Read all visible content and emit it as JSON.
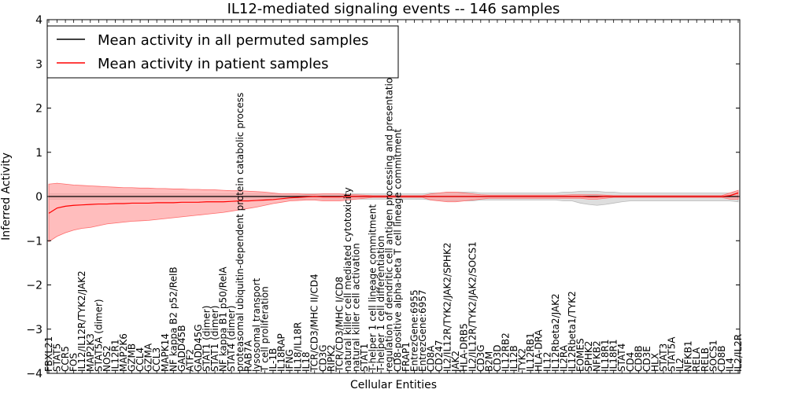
{
  "chart_data": {
    "type": "line",
    "title": "IL12-mediated signaling events -- 146 samples",
    "xlabel": "Cellular Entities",
    "ylabel": "Inferred Activity",
    "ylim": [
      -4,
      4
    ],
    "yticks": [
      -4,
      -3,
      -2,
      -1,
      0,
      1,
      2,
      3,
      4
    ],
    "legend_position": "top-left",
    "colors": {
      "permuted": "#000000",
      "patient": "#ff0000",
      "permuted_band": "#c8c8c8",
      "patient_band": "#ff9a9a"
    },
    "categories": [
      "FBXL21",
      "STAT5",
      "CCR5",
      "FOS",
      "IL12/IL12R/TYK2/JAK2",
      "MAP2K3",
      "STAT5A (dimer)",
      "NOS2",
      "IL12R1",
      "MAP2K6",
      "GZMB",
      "CCL4",
      "GZMA",
      "CCL3",
      "MAPK14",
      "NF kappa B2 p52/RelB",
      "GADD45B",
      "ATF2",
      "GADD45G",
      "STAT1 (dimer)",
      "STAT1 (dimer)",
      "NF kappa B1 p50/RelA",
      "STAT4 (dimer)",
      "proteasomal ubiquitin-dependent protein catabolic process",
      "RAB7A",
      "lysosomal transport",
      "T cell proliferation",
      "IL-1B",
      "IL18RAP",
      "IFNG",
      "IL18/IL18R",
      "IL18",
      "TCR/CD3/MHC II/CD4",
      "CD3G",
      "RIPK2",
      "TCR/CD3/MHC I/CD8",
      "natural killer cell mediated cytotoxicity",
      "natural killer cell activation",
      "STAT1",
      "T-helper 1 cell lineage commitment",
      "T-helper 1 cell differentiation",
      "regulation of dendritic cell antigen processing and presentation",
      "CD8-positive alpha-beta T cell lineage commitment",
      "FRAP1",
      "EntrezGene:6955",
      "EntrezGene:6957",
      "CD8A",
      "CD247",
      "IL2/IL12R/TYK2/JAK2/SPHK2",
      "JAK2",
      "HLA-DRB5",
      "IL2/IL12R/TYK2/JAK2/SOCS1",
      "CD3G",
      "B2M",
      "CD3D",
      "IL12RB2",
      "IL12B",
      "TYK2",
      "IL12RB1",
      "HLA-DRA",
      "IL12",
      "IL12Rbeta2/JAK2",
      "IL2RA",
      "IL12Rbeta1/TYK2",
      "EOMES",
      "SPHK2",
      "NFKB2",
      "IL18R1",
      "IL18R1",
      "STAT4",
      "CD4",
      "CD8B",
      "CD3E",
      "HLX",
      "STAT3",
      "STAT5A",
      "IL2",
      "NFKB1",
      "RELA",
      "RELB",
      "SOCS1",
      "CD8B",
      "IL4",
      "IL2/IL2R"
    ],
    "series": [
      {
        "name": "Mean activity in all permuted samples",
        "values": [
          0.0,
          0.0,
          0.0,
          0.0,
          0.0,
          0.0,
          0.0,
          0.0,
          0.0,
          0.0,
          0.0,
          0.0,
          0.0,
          0.0,
          0.0,
          0.0,
          0.0,
          0.0,
          0.0,
          0.0,
          0.0,
          0.0,
          0.0,
          0.0,
          0.0,
          0.0,
          0.0,
          0.0,
          0.0,
          0.0,
          0.0,
          0.0,
          0.0,
          0.0,
          0.0,
          0.0,
          0.0,
          0.0,
          0.0,
          0.0,
          0.0,
          0.0,
          0.0,
          0.0,
          0.0,
          0.0,
          0.0,
          0.0,
          0.0,
          0.0,
          0.0,
          0.0,
          0.0,
          0.0,
          0.0,
          0.0,
          0.0,
          0.0,
          0.0,
          0.0,
          0.0,
          0.0,
          0.0,
          0.0,
          0.0,
          0.0,
          0.0,
          0.0,
          0.0,
          0.0,
          0.0,
          0.0,
          0.0,
          0.0,
          0.0,
          0.0,
          0.0,
          0.0,
          0.0,
          0.0,
          0.0,
          0.0,
          0.0,
          0.0
        ],
        "lower": [
          -0.06,
          -0.06,
          -0.06,
          -0.06,
          -0.06,
          -0.06,
          -0.06,
          -0.06,
          -0.06,
          -0.06,
          -0.06,
          -0.06,
          -0.06,
          -0.06,
          -0.06,
          -0.06,
          -0.06,
          -0.06,
          -0.06,
          -0.06,
          -0.06,
          -0.06,
          -0.06,
          -0.06,
          -0.06,
          -0.06,
          -0.06,
          -0.06,
          -0.06,
          -0.06,
          -0.06,
          -0.06,
          -0.06,
          -0.06,
          -0.06,
          -0.06,
          -0.06,
          -0.06,
          -0.06,
          -0.06,
          -0.06,
          -0.06,
          -0.06,
          -0.06,
          -0.06,
          -0.06,
          -0.08,
          -0.08,
          -0.1,
          -0.1,
          -0.1,
          -0.1,
          -0.08,
          -0.08,
          -0.08,
          -0.08,
          -0.08,
          -0.08,
          -0.08,
          -0.08,
          -0.08,
          -0.08,
          -0.1,
          -0.1,
          -0.15,
          -0.18,
          -0.2,
          -0.18,
          -0.15,
          -0.12,
          -0.1,
          -0.1,
          -0.1,
          -0.1,
          -0.1,
          -0.1,
          -0.1,
          -0.1,
          -0.1,
          -0.1,
          -0.1,
          -0.1,
          -0.1,
          -0.12
        ],
        "upper": [
          0.06,
          0.06,
          0.06,
          0.06,
          0.06,
          0.06,
          0.06,
          0.06,
          0.06,
          0.06,
          0.06,
          0.06,
          0.06,
          0.06,
          0.06,
          0.06,
          0.06,
          0.06,
          0.06,
          0.06,
          0.06,
          0.06,
          0.06,
          0.06,
          0.06,
          0.06,
          0.06,
          0.06,
          0.06,
          0.06,
          0.06,
          0.06,
          0.06,
          0.06,
          0.06,
          0.06,
          0.06,
          0.06,
          0.06,
          0.06,
          0.06,
          0.06,
          0.06,
          0.06,
          0.06,
          0.06,
          0.08,
          0.08,
          0.1,
          0.1,
          0.1,
          0.1,
          0.08,
          0.08,
          0.08,
          0.08,
          0.08,
          0.08,
          0.08,
          0.08,
          0.08,
          0.08,
          0.1,
          0.1,
          0.12,
          0.12,
          0.12,
          0.1,
          0.1,
          0.08,
          0.08,
          0.08,
          0.08,
          0.08,
          0.08,
          0.08,
          0.08,
          0.08,
          0.08,
          0.08,
          0.08,
          0.08,
          0.08,
          0.1
        ]
      },
      {
        "name": "Mean activity in patient samples",
        "values": [
          -0.38,
          -0.26,
          -0.22,
          -0.2,
          -0.19,
          -0.18,
          -0.17,
          -0.17,
          -0.16,
          -0.16,
          -0.15,
          -0.15,
          -0.15,
          -0.14,
          -0.14,
          -0.14,
          -0.13,
          -0.13,
          -0.13,
          -0.12,
          -0.12,
          -0.12,
          -0.11,
          -0.1,
          -0.1,
          -0.09,
          -0.08,
          -0.07,
          -0.05,
          -0.03,
          -0.02,
          -0.01,
          0.0,
          -0.01,
          -0.01,
          -0.01,
          0.0,
          0.0,
          0.0,
          0.0,
          0.0,
          0.0,
          0.0,
          0.0,
          0.0,
          0.0,
          0.0,
          0.0,
          0.0,
          0.0,
          0.0,
          0.0,
          0.0,
          0.0,
          0.0,
          0.0,
          0.0,
          0.0,
          0.0,
          0.0,
          0.0,
          0.0,
          0.0,
          0.0,
          0.0,
          -0.01,
          -0.01,
          0.0,
          0.0,
          0.0,
          0.0,
          0.0,
          0.0,
          0.0,
          0.0,
          0.0,
          0.0,
          0.0,
          0.0,
          0.0,
          0.0,
          0.0,
          0.02,
          0.08
        ],
        "lower": [
          -1.02,
          -0.9,
          -0.82,
          -0.76,
          -0.72,
          -0.7,
          -0.66,
          -0.62,
          -0.6,
          -0.58,
          -0.56,
          -0.55,
          -0.54,
          -0.52,
          -0.5,
          -0.48,
          -0.46,
          -0.44,
          -0.42,
          -0.4,
          -0.38,
          -0.36,
          -0.33,
          -0.3,
          -0.27,
          -0.24,
          -0.2,
          -0.16,
          -0.13,
          -0.1,
          -0.09,
          -0.08,
          -0.08,
          -0.1,
          -0.1,
          -0.1,
          -0.08,
          -0.06,
          -0.04,
          -0.02,
          -0.02,
          -0.02,
          -0.02,
          -0.02,
          -0.02,
          -0.02,
          -0.08,
          -0.1,
          -0.12,
          -0.12,
          -0.1,
          -0.08,
          -0.06,
          -0.04,
          -0.04,
          -0.04,
          -0.04,
          -0.04,
          -0.04,
          -0.04,
          -0.04,
          -0.04,
          -0.04,
          -0.04,
          -0.04,
          -0.06,
          -0.06,
          -0.04,
          -0.02,
          -0.02,
          -0.02,
          -0.02,
          -0.02,
          -0.02,
          -0.02,
          -0.02,
          -0.02,
          -0.02,
          -0.02,
          -0.02,
          -0.02,
          -0.02,
          -0.06,
          -0.06
        ],
        "upper": [
          0.28,
          0.3,
          0.28,
          0.26,
          0.25,
          0.24,
          0.23,
          0.22,
          0.21,
          0.2,
          0.2,
          0.19,
          0.19,
          0.18,
          0.18,
          0.17,
          0.17,
          0.16,
          0.16,
          0.15,
          0.15,
          0.14,
          0.13,
          0.13,
          0.12,
          0.11,
          0.1,
          0.08,
          0.06,
          0.06,
          0.06,
          0.05,
          0.05,
          0.06,
          0.06,
          0.06,
          0.04,
          0.04,
          0.03,
          0.02,
          0.02,
          0.02,
          0.02,
          0.02,
          0.02,
          0.02,
          0.06,
          0.08,
          0.1,
          0.1,
          0.08,
          0.06,
          0.04,
          0.03,
          0.03,
          0.03,
          0.03,
          0.03,
          0.03,
          0.03,
          0.03,
          0.03,
          0.03,
          0.04,
          0.04,
          0.04,
          0.04,
          0.03,
          0.02,
          0.02,
          0.02,
          0.02,
          0.02,
          0.02,
          0.02,
          0.02,
          0.02,
          0.02,
          0.02,
          0.02,
          0.02,
          0.02,
          0.08,
          0.14
        ]
      }
    ]
  }
}
